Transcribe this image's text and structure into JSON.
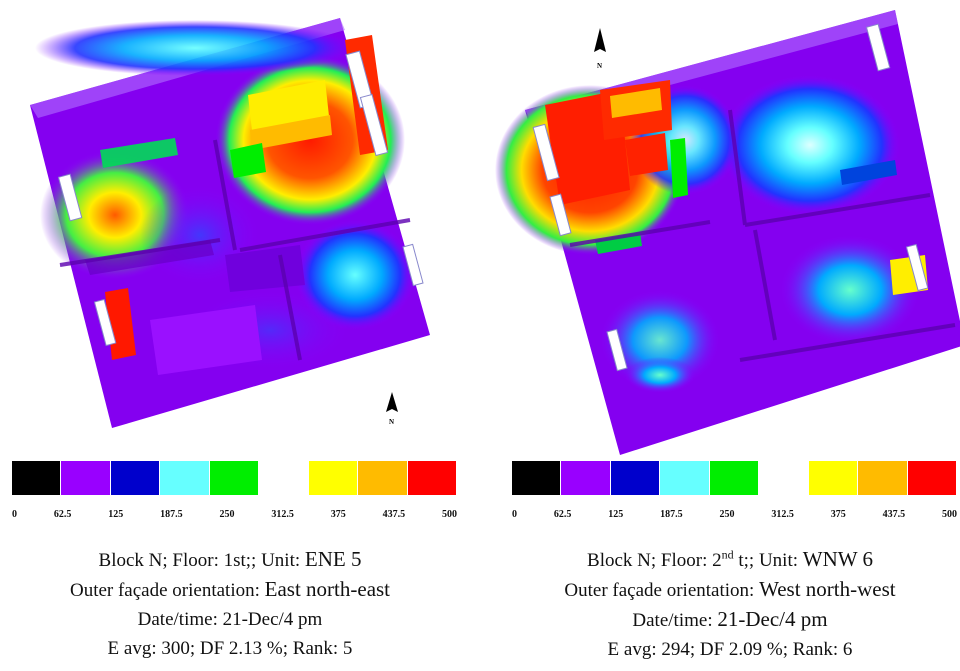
{
  "legend": {
    "colors": [
      "#000000",
      "#9900ff",
      "#0000cc",
      "#66ffff",
      "#00ee00",
      "#ffffff",
      "#ffff00",
      "#ffbb00",
      "#ff0000"
    ],
    "ticks": [
      "0",
      "62.5",
      "125",
      "187.5",
      "250",
      "312.5",
      "375",
      "437.5",
      "500"
    ]
  },
  "north_label": "N",
  "left": {
    "line1_pre": "Block N; Floor: 1st;; Unit: ",
    "line1_unit": "ENE 5",
    "line2_pre": "Outer façade orientation: ",
    "line2_orient": "East north-east",
    "line3": "Date/time: 21-Dec/4 pm",
    "line4": "E avg: 300; DF 2.13 %; Rank: 5"
  },
  "right": {
    "line1_pre": "Block N; Floor: 2",
    "line1_sup": "nd",
    "line1_mid": " t;; Unit: ",
    "line1_unit": "WNW 6",
    "line2_pre": "Outer façade orientation: ",
    "line2_orient": "West north-west",
    "line3_pre": "Date/time: ",
    "line3_date": "21-Dec/4 pm",
    "line4": "E avg: 294; DF 2.09 %; Rank: 6"
  }
}
